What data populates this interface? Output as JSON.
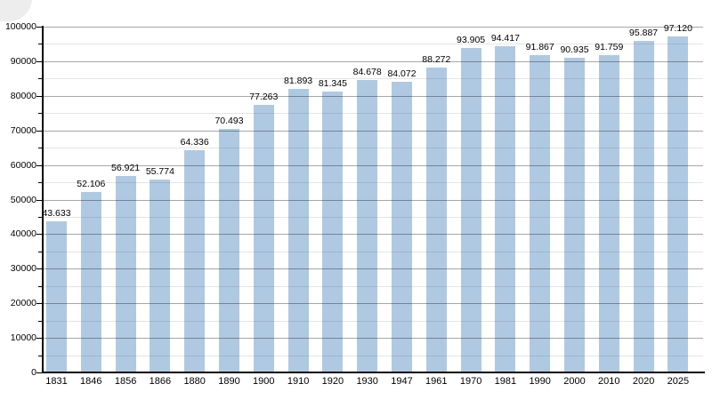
{
  "chart_data": {
    "type": "bar",
    "title": "",
    "xlabel": "",
    "ylabel": "",
    "categories": [
      "1831",
      "1846",
      "1856",
      "1866",
      "1880",
      "1890",
      "1900",
      "1910",
      "1920",
      "1930",
      "1947",
      "1961",
      "1970",
      "1981",
      "1990",
      "2000",
      "2010",
      "2020",
      "2025"
    ],
    "values": [
      43633,
      52106,
      56921,
      55774,
      64336,
      70493,
      77263,
      81893,
      81345,
      84678,
      84072,
      88272,
      93905,
      94417,
      91867,
      90935,
      91759,
      95887,
      97120
    ],
    "value_labels": [
      "43.633",
      "52.106",
      "56.921",
      "55.774",
      "64.336",
      "70.493",
      "77.263",
      "81.893",
      "81.345",
      "84.678",
      "84.072",
      "88.272",
      "93.905",
      "94.417",
      "91.867",
      "90.935",
      "91.759",
      "95.887",
      "97.120"
    ],
    "ylim": [
      0,
      100000
    ],
    "y_major_step": 10000,
    "y_minor_step": 5000,
    "y_tick_labels": [
      "0",
      "10000",
      "20000",
      "30000",
      "40000",
      "50000",
      "60000",
      "70000",
      "80000",
      "90000",
      "100000"
    ],
    "grid": true,
    "legend": null,
    "colors": {
      "bar": "#b0c9e2",
      "major_grid": "rgba(0,0,0,0.34)",
      "minor_grid": "rgba(0,0,0,0.10)",
      "axis": "#000000",
      "text": "#000000",
      "background": "#ffffff"
    }
  }
}
